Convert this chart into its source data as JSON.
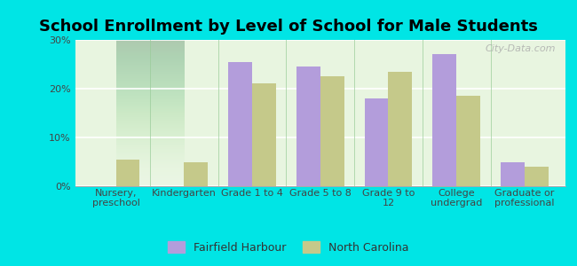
{
  "title": "School Enrollment by Level of School for Male Students",
  "categories": [
    "Nursery,\npreschool",
    "Kindergarten",
    "Grade 1 to 4",
    "Grade 5 to 8",
    "Grade 9 to\n12",
    "College\nundergrad",
    "Graduate or\nprofessional"
  ],
  "fairfield_values": [
    0,
    0,
    25.5,
    24.5,
    18.0,
    27.0,
    5.0
  ],
  "nc_values": [
    5.5,
    5.0,
    21.0,
    22.5,
    23.5,
    18.5,
    4.0
  ],
  "fairfield_color": "#b39ddb",
  "nc_color": "#c5c98a",
  "background_color": "#00e5e5",
  "ylim": [
    0,
    30
  ],
  "yticks": [
    0,
    10,
    20,
    30
  ],
  "ytick_labels": [
    "0%",
    "10%",
    "20%",
    "30%"
  ],
  "legend_label_fairfield": "Fairfield Harbour",
  "legend_label_nc": "North Carolina",
  "bar_width": 0.35,
  "title_fontsize": 13,
  "tick_fontsize": 8,
  "legend_fontsize": 9,
  "watermark": "City-Data.com"
}
